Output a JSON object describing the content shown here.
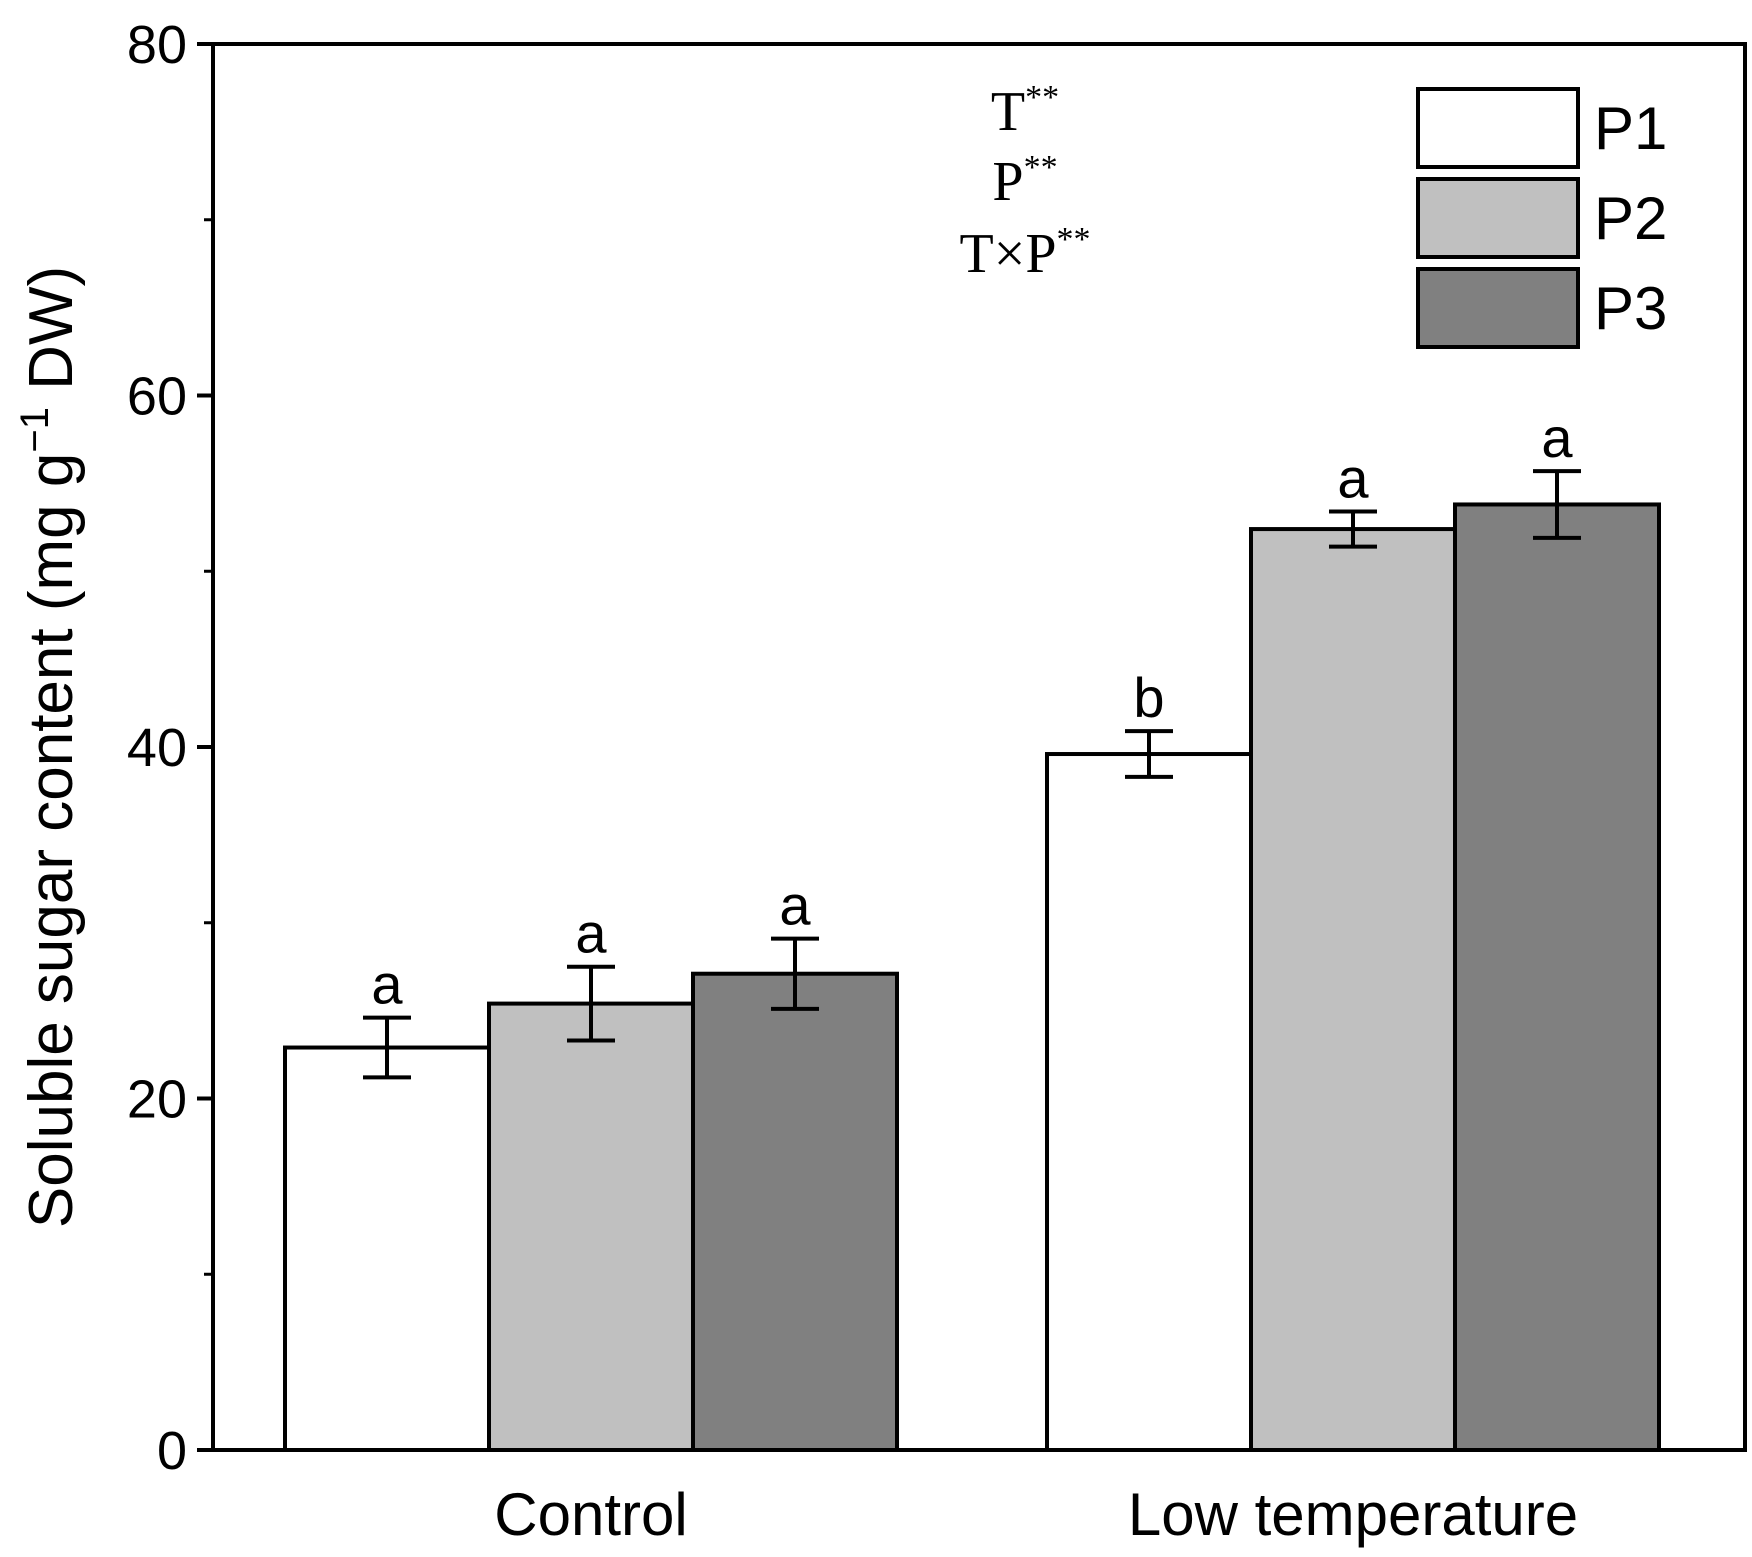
{
  "chart_data": {
    "type": "bar",
    "title": "",
    "xlabel": "",
    "ylabel_parts": {
      "main": "Soluble sugar content (mg g",
      "sup": "−1",
      "tail": " DW)"
    },
    "ylim": [
      0,
      80
    ],
    "yticks": [
      0,
      20,
      40,
      60,
      80
    ],
    "yticks_minor": [
      10,
      30,
      50,
      70
    ],
    "categories": [
      "Control",
      "Low temperature"
    ],
    "series": [
      {
        "name": "P1",
        "color": "#ffffff",
        "values": [
          22.9,
          39.6
        ],
        "errors": [
          1.7,
          1.3
        ],
        "letters": [
          "a",
          "b"
        ]
      },
      {
        "name": "P2",
        "color": "#c0c0c0",
        "values": [
          25.4,
          52.4
        ],
        "errors": [
          2.1,
          1.0
        ],
        "letters": [
          "a",
          "a"
        ]
      },
      {
        "name": "P3",
        "color": "#808080",
        "values": [
          27.1,
          53.8
        ],
        "errors": [
          2.0,
          1.9
        ],
        "letters": [
          "a",
          "a"
        ]
      }
    ],
    "legend_position": "top-right",
    "annotations": [
      {
        "base": "T",
        "sup": "**"
      },
      {
        "base": "P",
        "sup": "**"
      },
      {
        "base": "T×P",
        "sup": "**"
      }
    ]
  }
}
